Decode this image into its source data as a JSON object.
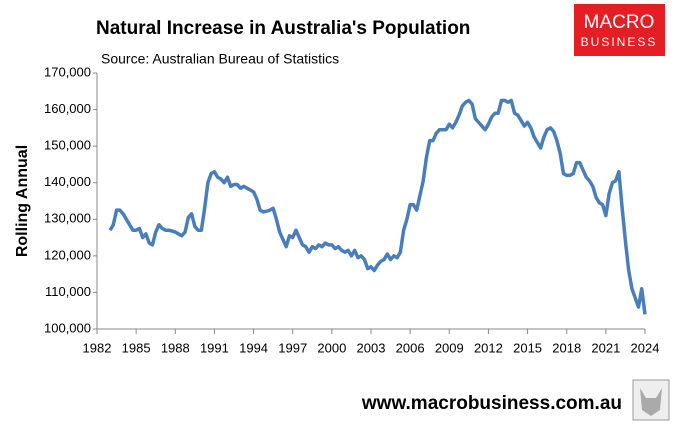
{
  "chart_data": {
    "type": "line",
    "title": "Natural Increase in Australia's Population",
    "subtitle": "Source: Australian Bureau of Statistics",
    "y_label": "Rolling Annual",
    "logo_top": "MACRO",
    "logo_bottom": "BUSINESS",
    "website": "www.macrobusiness.com.au",
    "color": "#4a7ebb",
    "x": [
      1983,
      1983.25,
      1983.5,
      1983.75,
      1984,
      1984.25,
      1984.5,
      1984.75,
      1985,
      1985.25,
      1985.5,
      1985.75,
      1986,
      1986.25,
      1986.5,
      1986.75,
      1987,
      1987.25,
      1987.5,
      1987.75,
      1988,
      1988.25,
      1988.5,
      1988.75,
      1989,
      1989.25,
      1989.5,
      1989.75,
      1990,
      1990.25,
      1990.5,
      1990.75,
      1991,
      1991.25,
      1991.5,
      1991.75,
      1992,
      1992.25,
      1992.5,
      1992.75,
      1993,
      1993.25,
      1993.5,
      1993.75,
      1994,
      1994.25,
      1994.5,
      1994.75,
      1995,
      1995.25,
      1995.5,
      1995.75,
      1996,
      1996.25,
      1996.5,
      1996.75,
      1997,
      1997.25,
      1997.5,
      1997.75,
      1998,
      1998.25,
      1998.5,
      1998.75,
      1999,
      1999.25,
      1999.5,
      1999.75,
      2000,
      2000.25,
      2000.5,
      2000.75,
      2001,
      2001.25,
      2001.5,
      2001.75,
      2002,
      2002.25,
      2002.5,
      2002.75,
      2003,
      2003.25,
      2003.5,
      2003.75,
      2004,
      2004.25,
      2004.5,
      2004.75,
      2005,
      2005.25,
      2005.5,
      2005.75,
      2006,
      2006.25,
      2006.5,
      2006.75,
      2007,
      2007.25,
      2007.5,
      2007.75,
      2008,
      2008.25,
      2008.5,
      2008.75,
      2009,
      2009.25,
      2009.5,
      2009.75,
      2010,
      2010.25,
      2010.5,
      2010.75,
      2011,
      2011.25,
      2011.5,
      2011.75,
      2012,
      2012.25,
      2012.5,
      2012.75,
      2013,
      2013.25,
      2013.5,
      2013.75,
      2014,
      2014.25,
      2014.5,
      2014.75,
      2015,
      2015.25,
      2015.5,
      2015.75,
      2016,
      2016.25,
      2016.5,
      2016.75,
      2017,
      2017.25,
      2017.5,
      2017.75,
      2018,
      2018.25,
      2018.5,
      2018.75,
      2019,
      2019.25,
      2019.5,
      2019.75,
      2020,
      2020.25,
      2020.5,
      2020.75,
      2021,
      2021.25,
      2021.5,
      2021.75,
      2022,
      2022.25,
      2022.5,
      2022.75,
      2023,
      2023.25,
      2023.5,
      2023.75,
      2024
    ],
    "values": [
      127000,
      128500,
      132500,
      132500,
      131500,
      130000,
      128500,
      127000,
      127000,
      127500,
      125000,
      126000,
      123500,
      123000,
      126500,
      128500,
      127500,
      127000,
      127000,
      126800,
      126500,
      126000,
      125500,
      126500,
      130500,
      131500,
      128000,
      127000,
      127000,
      133000,
      140000,
      142500,
      143000,
      141500,
      141000,
      140000,
      141500,
      139000,
      139500,
      139500,
      138500,
      139000,
      138500,
      138000,
      137500,
      135500,
      132500,
      132000,
      132200,
      132500,
      133000,
      130000,
      126500,
      124500,
      122500,
      125500,
      125000,
      127000,
      125000,
      123000,
      122500,
      121000,
      122500,
      122000,
      123000,
      122500,
      123500,
      123000,
      123000,
      122000,
      122500,
      121500,
      121000,
      121500,
      120000,
      121500,
      119500,
      120000,
      119000,
      116500,
      117000,
      116000,
      117500,
      118500,
      119000,
      120500,
      119000,
      120000,
      119500,
      121000,
      127000,
      130000,
      134000,
      134000,
      132500,
      136500,
      140500,
      147000,
      151500,
      151500,
      153500,
      154500,
      154500,
      154500,
      156000,
      155000,
      156500,
      158500,
      161000,
      162000,
      162500,
      161500,
      157500,
      156500,
      155500,
      154500,
      156000,
      158000,
      159000,
      159000,
      162500,
      162500,
      162000,
      162500,
      159000,
      158500,
      157000,
      155500,
      156500,
      155000,
      152500,
      151000,
      149500,
      152500,
      154500,
      155000,
      154000,
      151500,
      148000,
      142500,
      142000,
      142000,
      142500,
      145500,
      145500,
      143500,
      141500,
      140500,
      139000,
      136000,
      134500,
      134000,
      131000,
      137000,
      140000,
      140500,
      143000,
      133000,
      124000,
      116000,
      111000,
      108500,
      106000,
      111000,
      104000
    ],
    "xlim": [
      1982,
      2024
    ],
    "xticks": [
      1982,
      1985,
      1988,
      1991,
      1994,
      1997,
      2000,
      2003,
      2006,
      2009,
      2012,
      2015,
      2018,
      2021,
      2024
    ],
    "ylim": [
      100000,
      170000
    ],
    "yticks": [
      {
        "value": 100000,
        "label": "100,000"
      },
      {
        "value": 110000,
        "label": "110,000"
      },
      {
        "value": 120000,
        "label": "120,000"
      },
      {
        "value": 130000,
        "label": "130,000"
      },
      {
        "value": 140000,
        "label": "140,000"
      },
      {
        "value": 150000,
        "label": "150,000"
      },
      {
        "value": 160000,
        "label": "160,000"
      },
      {
        "value": 170000,
        "label": "170,000"
      }
    ],
    "grid": false
  }
}
